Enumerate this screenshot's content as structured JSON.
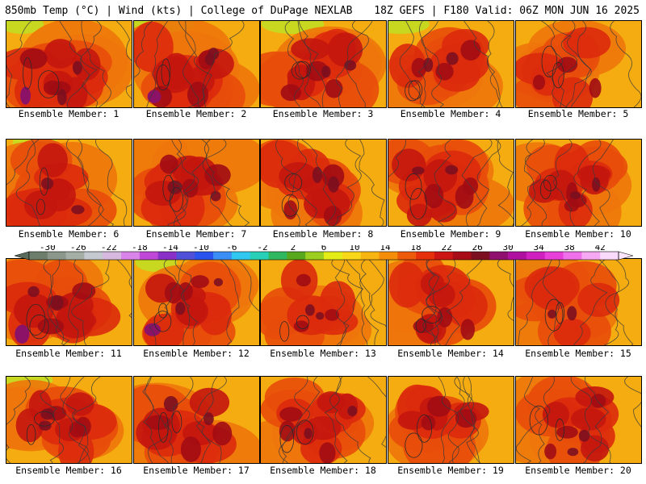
{
  "header": {
    "left": "850mb Temp (°C) | Wind (kts) | College of DuPage NEXLAB",
    "right": "18Z GEFS | F180 Valid: 06Z MON JUN 16 2025"
  },
  "colorbar": {
    "labels": [
      "-30",
      "-26",
      "-22",
      "-18",
      "-14",
      "-10",
      "-6",
      "-2",
      "2",
      "6",
      "10",
      "14",
      "18",
      "22",
      "26",
      "30",
      "34",
      "38",
      "42"
    ],
    "colors": [
      "#6d7e6d",
      "#8a978a",
      "#a5aea5",
      "#c4c9d0",
      "#d7b8df",
      "#d884e8",
      "#c048d8",
      "#8a2fc8",
      "#5050d8",
      "#2a52ec",
      "#3a8ef4",
      "#30c8f0",
      "#28d0b8",
      "#30b860",
      "#58a81e",
      "#9cce20",
      "#e4ec18",
      "#f8d818",
      "#f8b410",
      "#f48e0a",
      "#ec5a0a",
      "#e6300c",
      "#cc1414",
      "#a80c16",
      "#7c1020",
      "#901070",
      "#b010a0",
      "#d020c0",
      "#e840d8",
      "#f070ec",
      "#f6a8f2",
      "#fadafa"
    ]
  },
  "members": [
    {
      "label": "Ensemble Member: 1",
      "seed": 11,
      "heat": 0.95
    },
    {
      "label": "Ensemble Member: 2",
      "seed": 23,
      "heat": 0.97
    },
    {
      "label": "Ensemble Member: 3",
      "seed": 37,
      "heat": 0.82
    },
    {
      "label": "Ensemble Member: 4",
      "seed": 41,
      "heat": 0.72
    },
    {
      "label": "Ensemble Member: 5",
      "seed": 53,
      "heat": 0.55
    },
    {
      "label": "Ensemble Member: 6",
      "seed": 67,
      "heat": 0.78
    },
    {
      "label": "Ensemble Member: 7",
      "seed": 71,
      "heat": 0.88
    },
    {
      "label": "Ensemble Member: 8",
      "seed": 83,
      "heat": 0.85
    },
    {
      "label": "Ensemble Member: 9",
      "seed": 97,
      "heat": 0.8
    },
    {
      "label": "Ensemble Member: 10",
      "seed": 101,
      "heat": 0.6
    },
    {
      "label": "Ensemble Member: 11",
      "seed": 113,
      "heat": 0.88
    },
    {
      "label": "Ensemble Member: 12",
      "seed": 127,
      "heat": 0.6
    },
    {
      "label": "Ensemble Member: 13",
      "seed": 131,
      "heat": 0.55
    },
    {
      "label": "Ensemble Member: 14",
      "seed": 149,
      "heat": 0.75
    },
    {
      "label": "Ensemble Member: 15",
      "seed": 151,
      "heat": 0.65
    },
    {
      "label": "Ensemble Member: 16",
      "seed": 163,
      "heat": 0.72
    },
    {
      "label": "Ensemble Member: 17",
      "seed": 173,
      "heat": 0.8
    },
    {
      "label": "Ensemble Member: 18",
      "seed": 181,
      "heat": 0.62
    },
    {
      "label": "Ensemble Member: 19",
      "seed": 191,
      "heat": 0.72
    },
    {
      "label": "Ensemble Member: 20",
      "seed": 197,
      "heat": 0.65
    }
  ]
}
